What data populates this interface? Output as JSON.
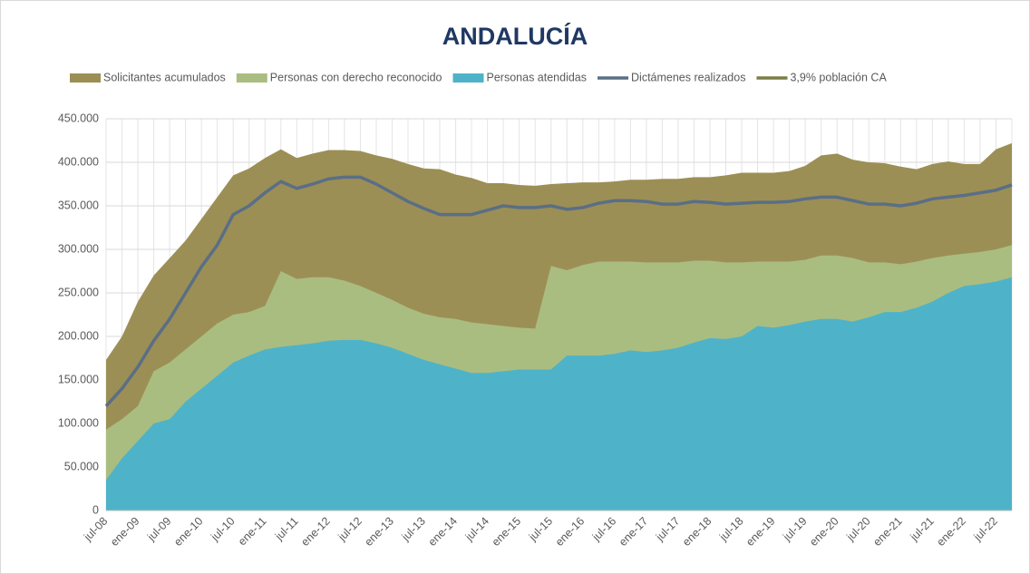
{
  "chart_data": {
    "type": "area",
    "title": "ANDALUCÍA",
    "categories": [
      "jul-08",
      null,
      "ene-09",
      null,
      "jul-09",
      null,
      "ene-10",
      null,
      "jul-10",
      null,
      "ene-11",
      null,
      "jul-11",
      null,
      "ene-12",
      null,
      "jul-12",
      null,
      "ene-13",
      null,
      "jul-13",
      null,
      "ene-14",
      null,
      "jul-14",
      null,
      "ene-15",
      null,
      "jul-15",
      null,
      "ene-16",
      null,
      "jul-16",
      null,
      "ene-17",
      null,
      "jul-17",
      null,
      "ene-18",
      null,
      "jul-18",
      null,
      "ene-19",
      null,
      "jul-19",
      null,
      "ene-20",
      null,
      "jul-20",
      null,
      "ene-21",
      null,
      "jul-21",
      null,
      "ene-22",
      null,
      "jul-22",
      null
    ],
    "series": [
      {
        "name": "Solicitantes acumulados",
        "type": "area",
        "color": "#9c8f55",
        "values": [
          173000,
          200000,
          240000,
          270000,
          290000,
          310000,
          335000,
          360000,
          385000,
          393000,
          405000,
          415000,
          405000,
          410000,
          414000,
          414000,
          413000,
          408000,
          404000,
          398000,
          393000,
          392000,
          386000,
          382000,
          376000,
          376000,
          374000,
          373000,
          375000,
          376000,
          377000,
          377000,
          378000,
          380000,
          380000,
          381000,
          381000,
          383000,
          383000,
          385000,
          388000,
          388000,
          388000,
          390000,
          396000,
          408000,
          410000,
          403000,
          400000,
          399000,
          395000,
          392000,
          398000,
          401000,
          398000,
          398000,
          415000,
          422000
        ]
      },
      {
        "name": "Personas con derecho reconocido",
        "type": "area",
        "color": "#aabd80",
        "values": [
          93000,
          105000,
          120000,
          160000,
          170000,
          185000,
          200000,
          215000,
          225000,
          228000,
          235000,
          275000,
          266000,
          268000,
          268000,
          264000,
          258000,
          250000,
          242000,
          233000,
          226000,
          222000,
          220000,
          216000,
          214000,
          212000,
          210000,
          209000,
          281000,
          276000,
          282000,
          286000,
          286000,
          286000,
          285000,
          285000,
          285000,
          287000,
          287000,
          285000,
          285000,
          286000,
          286000,
          286000,
          288000,
          293000,
          293000,
          290000,
          285000,
          285000,
          283000,
          286000,
          290000,
          293000,
          295000,
          297000,
          300000,
          305000
        ]
      },
      {
        "name": "Personas atendidas",
        "type": "area",
        "color": "#4eb3c8",
        "values": [
          35000,
          60000,
          80000,
          100000,
          105000,
          125000,
          140000,
          155000,
          170000,
          178000,
          185000,
          188000,
          190000,
          192000,
          195000,
          196000,
          196000,
          192000,
          187000,
          180000,
          173000,
          168000,
          163000,
          158000,
          158000,
          160000,
          162000,
          162000,
          162000,
          178000,
          178000,
          178000,
          180000,
          184000,
          182000,
          184000,
          187000,
          193000,
          198000,
          197000,
          200000,
          212000,
          210000,
          213000,
          217000,
          220000,
          220000,
          217000,
          222000,
          228000,
          228000,
          233000,
          240000,
          250000,
          258000,
          260000,
          263000,
          268000
        ]
      },
      {
        "name": "Dictámenes realizados",
        "type": "line",
        "color": "#5a6e86",
        "values": [
          120000,
          140000,
          165000,
          195000,
          220000,
          250000,
          280000,
          305000,
          340000,
          350000,
          365000,
          378000,
          370000,
          375000,
          381000,
          383000,
          383000,
          375000,
          365000,
          355000,
          347000,
          340000,
          340000,
          340000,
          345000,
          350000,
          348000,
          348000,
          350000,
          346000,
          348000,
          353000,
          356000,
          356000,
          355000,
          352000,
          352000,
          355000,
          354000,
          352000,
          353000,
          354000,
          354000,
          355000,
          358000,
          360000,
          360000,
          356000,
          352000,
          352000,
          350000,
          353000,
          358000,
          360000,
          362000,
          365000,
          368000,
          374000
        ]
      },
      {
        "name": "3,9% población CA",
        "type": "line",
        "color": "#7a7d46",
        "values": [
          null,
          null,
          null,
          null,
          null,
          null,
          null,
          null,
          null,
          null,
          null,
          null,
          null,
          null,
          null,
          null,
          null,
          null,
          null,
          null,
          null,
          null,
          null,
          null,
          null,
          null,
          null,
          null,
          null,
          null,
          null,
          null,
          null,
          null,
          null,
          null,
          null,
          null,
          null,
          null,
          null,
          null,
          null,
          null,
          null,
          null,
          null,
          null,
          null,
          null,
          null,
          null,
          null,
          null,
          null,
          null,
          null,
          null
        ]
      }
    ],
    "ylim": [
      0,
      450000
    ],
    "yticks": [
      0,
      {
        "value": 50000,
        "label": "50.000"
      },
      {
        "value": 100000,
        "label": "100.000"
      },
      {
        "value": 150000,
        "label": "150.000"
      },
      {
        "value": 200000,
        "label": "200.000"
      },
      {
        "value": 250000,
        "label": "250.000"
      },
      {
        "value": 300000,
        "label": "300.000"
      },
      {
        "value": 350000,
        "label": "350.000"
      },
      {
        "value": 400000,
        "label": "400.000"
      },
      {
        "value": 450000,
        "label": "450.000"
      }
    ],
    "grid": true,
    "legend": "top"
  }
}
